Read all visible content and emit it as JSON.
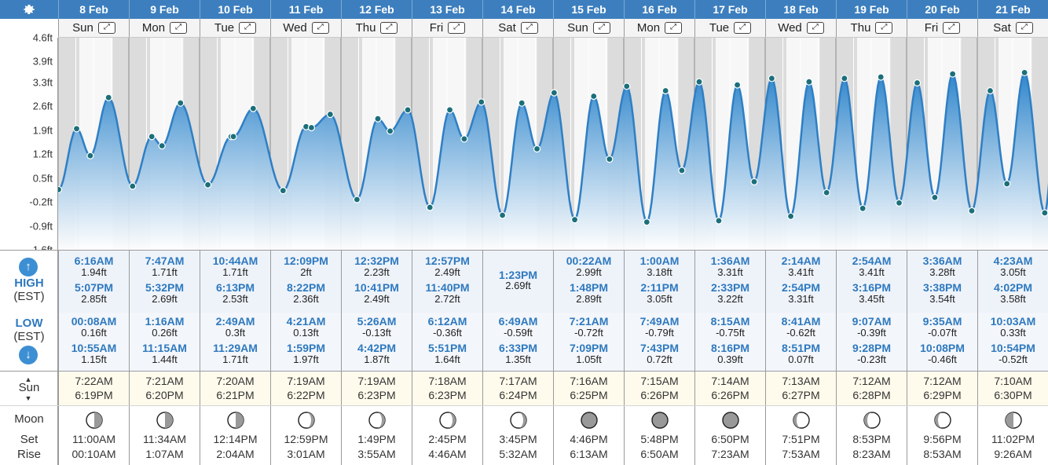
{
  "settings_icon": "gear-icon",
  "days": [
    {
      "date": "8 Feb",
      "day": "Sun",
      "high": [
        {
          "time": "6:16AM",
          "height": "1.94ft"
        },
        {
          "time": "5:07PM",
          "height": "2.85ft"
        }
      ],
      "low": [
        {
          "time": "00:08AM",
          "height": "0.16ft"
        },
        {
          "time": "10:55AM",
          "height": "1.15ft"
        }
      ],
      "sunrise": "7:22AM",
      "sunset": "6:19PM",
      "moonset": "11:00AM",
      "moonrise": "00:10AM",
      "moon_phase": "last-quarter"
    },
    {
      "date": "9 Feb",
      "day": "Mon",
      "high": [
        {
          "time": "7:47AM",
          "height": "1.71ft"
        },
        {
          "time": "5:32PM",
          "height": "2.69ft"
        }
      ],
      "low": [
        {
          "time": "1:16AM",
          "height": "0.26ft"
        },
        {
          "time": "11:15AM",
          "height": "1.44ft"
        }
      ],
      "sunrise": "7:21AM",
      "sunset": "6:20PM",
      "moonset": "11:34AM",
      "moonrise": "1:07AM",
      "moon_phase": "last-quarter"
    },
    {
      "date": "10 Feb",
      "day": "Tue",
      "high": [
        {
          "time": "10:44AM",
          "height": "1.71ft"
        },
        {
          "time": "6:13PM",
          "height": "2.53ft"
        }
      ],
      "low": [
        {
          "time": "2:49AM",
          "height": "0.3ft"
        },
        {
          "time": "11:29AM",
          "height": "1.71ft"
        }
      ],
      "sunrise": "7:20AM",
      "sunset": "6:21PM",
      "moonset": "12:14PM",
      "moonrise": "2:04AM",
      "moon_phase": "last-quarter"
    },
    {
      "date": "11 Feb",
      "day": "Wed",
      "high": [
        {
          "time": "12:09PM",
          "height": "2ft"
        },
        {
          "time": "8:22PM",
          "height": "2.36ft"
        }
      ],
      "low": [
        {
          "time": "4:21AM",
          "height": "0.13ft"
        },
        {
          "time": "1:59PM",
          "height": "1.97ft"
        }
      ],
      "sunrise": "7:19AM",
      "sunset": "6:22PM",
      "moonset": "12:59PM",
      "moonrise": "3:01AM",
      "moon_phase": "waning-crescent"
    },
    {
      "date": "12 Feb",
      "day": "Thu",
      "high": [
        {
          "time": "12:32PM",
          "height": "2.23ft"
        },
        {
          "time": "10:41PM",
          "height": "2.49ft"
        }
      ],
      "low": [
        {
          "time": "5:26AM",
          "height": "-0.13ft"
        },
        {
          "time": "4:42PM",
          "height": "1.87ft"
        }
      ],
      "sunrise": "7:19AM",
      "sunset": "6:23PM",
      "moonset": "1:49PM",
      "moonrise": "3:55AM",
      "moon_phase": "waning-crescent"
    },
    {
      "date": "13 Feb",
      "day": "Fri",
      "high": [
        {
          "time": "12:57PM",
          "height": "2.49ft"
        },
        {
          "time": "11:40PM",
          "height": "2.72ft"
        }
      ],
      "low": [
        {
          "time": "6:12AM",
          "height": "-0.36ft"
        },
        {
          "time": "5:51PM",
          "height": "1.64ft"
        }
      ],
      "sunrise": "7:18AM",
      "sunset": "6:23PM",
      "moonset": "2:45PM",
      "moonrise": "4:46AM",
      "moon_phase": "waning-crescent"
    },
    {
      "date": "14 Feb",
      "day": "Sat",
      "high": [
        {
          "time": "1:23PM",
          "height": "2.69ft"
        }
      ],
      "low": [
        {
          "time": "6:49AM",
          "height": "-0.59ft"
        },
        {
          "time": "6:33PM",
          "height": "1.35ft"
        }
      ],
      "sunrise": "7:17AM",
      "sunset": "6:24PM",
      "moonset": "3:45PM",
      "moonrise": "5:32AM",
      "moon_phase": "waning-crescent"
    },
    {
      "date": "15 Feb",
      "day": "Sun",
      "high": [
        {
          "time": "00:22AM",
          "height": "2.99ft"
        },
        {
          "time": "1:48PM",
          "height": "2.89ft"
        }
      ],
      "low": [
        {
          "time": "7:21AM",
          "height": "-0.72ft"
        },
        {
          "time": "7:09PM",
          "height": "1.05ft"
        }
      ],
      "sunrise": "7:16AM",
      "sunset": "6:25PM",
      "moonset": "4:46PM",
      "moonrise": "6:13AM",
      "moon_phase": "new"
    },
    {
      "date": "16 Feb",
      "day": "Mon",
      "high": [
        {
          "time": "1:00AM",
          "height": "3.18ft"
        },
        {
          "time": "2:11PM",
          "height": "3.05ft"
        }
      ],
      "low": [
        {
          "time": "7:49AM",
          "height": "-0.79ft"
        },
        {
          "time": "7:43PM",
          "height": "0.72ft"
        }
      ],
      "sunrise": "7:15AM",
      "sunset": "6:26PM",
      "moonset": "5:48PM",
      "moonrise": "6:50AM",
      "moon_phase": "new"
    },
    {
      "date": "17 Feb",
      "day": "Tue",
      "high": [
        {
          "time": "1:36AM",
          "height": "3.31ft"
        },
        {
          "time": "2:33PM",
          "height": "3.22ft"
        }
      ],
      "low": [
        {
          "time": "8:15AM",
          "height": "-0.75ft"
        },
        {
          "time": "8:16PM",
          "height": "0.39ft"
        }
      ],
      "sunrise": "7:14AM",
      "sunset": "6:26PM",
      "moonset": "6:50PM",
      "moonrise": "7:23AM",
      "moon_phase": "new"
    },
    {
      "date": "18 Feb",
      "day": "Wed",
      "high": [
        {
          "time": "2:14AM",
          "height": "3.41ft"
        },
        {
          "time": "2:54PM",
          "height": "3.31ft"
        }
      ],
      "low": [
        {
          "time": "8:41AM",
          "height": "-0.62ft"
        },
        {
          "time": "8:51PM",
          "height": "0.07ft"
        }
      ],
      "sunrise": "7:13AM",
      "sunset": "6:27PM",
      "moonset": "7:51PM",
      "moonrise": "7:53AM",
      "moon_phase": "waxing-crescent"
    },
    {
      "date": "19 Feb",
      "day": "Thu",
      "high": [
        {
          "time": "2:54AM",
          "height": "3.41ft"
        },
        {
          "time": "3:16PM",
          "height": "3.45ft"
        }
      ],
      "low": [
        {
          "time": "9:07AM",
          "height": "-0.39ft"
        },
        {
          "time": "9:28PM",
          "height": "-0.23ft"
        }
      ],
      "sunrise": "7:12AM",
      "sunset": "6:28PM",
      "moonset": "8:53PM",
      "moonrise": "8:23AM",
      "moon_phase": "waxing-crescent"
    },
    {
      "date": "20 Feb",
      "day": "Fri",
      "high": [
        {
          "time": "3:36AM",
          "height": "3.28ft"
        },
        {
          "time": "3:38PM",
          "height": "3.54ft"
        }
      ],
      "low": [
        {
          "time": "9:35AM",
          "height": "-0.07ft"
        },
        {
          "time": "10:08PM",
          "height": "-0.46ft"
        }
      ],
      "sunrise": "7:12AM",
      "sunset": "6:29PM",
      "moonset": "9:56PM",
      "moonrise": "8:53AM",
      "moon_phase": "waxing-crescent"
    },
    {
      "date": "21 Feb",
      "day": "Sat",
      "high": [
        {
          "time": "4:23AM",
          "height": "3.05ft"
        },
        {
          "time": "4:02PM",
          "height": "3.58ft"
        }
      ],
      "low": [
        {
          "time": "10:03AM",
          "height": "0.33ft"
        },
        {
          "time": "10:54PM",
          "height": "-0.52ft"
        }
      ],
      "sunrise": "7:10AM",
      "sunset": "6:30PM",
      "moonset": "11:02PM",
      "moonrise": "9:26AM",
      "moon_phase": "first-quarter"
    }
  ],
  "labels": {
    "high": "HIGH",
    "high_tz": "(EST)",
    "low": "LOW",
    "low_tz": "(EST)",
    "sun": "Sun",
    "moon": "Moon",
    "set": "Set",
    "rise": "Rise",
    "expand_icon": "expand-icon",
    "high_icon": "up-arrow-icon",
    "low_icon": "down-arrow-icon"
  },
  "chart_data": {
    "type": "area",
    "y_unit": "ft",
    "yticks": [
      "-1.6ft",
      "-0.9ft",
      "-0.2ft",
      "0.5ft",
      "1.2ft",
      "1.9ft",
      "2.6ft",
      "3.3ft",
      "3.9ft",
      "4.6ft"
    ],
    "ylim": [
      -1.6,
      4.6
    ],
    "xlim_start": "8 Feb",
    "xlim_end": "22 Feb",
    "series": [
      {
        "points": [
          [
            "8 Feb 00:08",
            0.16
          ],
          [
            "8 Feb 06:16",
            1.94
          ],
          [
            "8 Feb 10:55",
            1.15
          ],
          [
            "8 Feb 17:07",
            2.85
          ],
          [
            "9 Feb 01:16",
            0.26
          ],
          [
            "9 Feb 07:47",
            1.71
          ],
          [
            "9 Feb 11:15",
            1.44
          ],
          [
            "9 Feb 17:32",
            2.69
          ],
          [
            "10 Feb 02:49",
            0.3
          ],
          [
            "10 Feb 10:44",
            1.71
          ],
          [
            "10 Feb 11:29",
            1.71
          ],
          [
            "10 Feb 18:13",
            2.53
          ],
          [
            "11 Feb 04:21",
            0.13
          ],
          [
            "11 Feb 12:09",
            2.0
          ],
          [
            "11 Feb 13:59",
            1.97
          ],
          [
            "11 Feb 20:22",
            2.36
          ],
          [
            "12 Feb 05:26",
            -0.13
          ],
          [
            "12 Feb 12:32",
            2.23
          ],
          [
            "12 Feb 16:42",
            1.87
          ],
          [
            "12 Feb 22:41",
            2.49
          ],
          [
            "13 Feb 06:12",
            -0.36
          ],
          [
            "13 Feb 12:57",
            2.49
          ],
          [
            "13 Feb 17:51",
            1.64
          ],
          [
            "13 Feb 23:40",
            2.72
          ],
          [
            "14 Feb 06:49",
            -0.59
          ],
          [
            "14 Feb 13:23",
            2.69
          ],
          [
            "14 Feb 18:33",
            1.35
          ],
          [
            "15 Feb 00:22",
            2.99
          ],
          [
            "15 Feb 07:21",
            -0.72
          ],
          [
            "15 Feb 13:48",
            2.89
          ],
          [
            "15 Feb 19:09",
            1.05
          ],
          [
            "16 Feb 01:00",
            3.18
          ],
          [
            "16 Feb 07:49",
            -0.79
          ],
          [
            "16 Feb 14:11",
            3.05
          ],
          [
            "16 Feb 19:43",
            0.72
          ],
          [
            "17 Feb 01:36",
            3.31
          ],
          [
            "17 Feb 08:15",
            -0.75
          ],
          [
            "17 Feb 14:33",
            3.22
          ],
          [
            "17 Feb 20:16",
            0.39
          ],
          [
            "18 Feb 02:14",
            3.41
          ],
          [
            "18 Feb 08:41",
            -0.62
          ],
          [
            "18 Feb 14:54",
            3.31
          ],
          [
            "18 Feb 20:51",
            0.07
          ],
          [
            "19 Feb 02:54",
            3.41
          ],
          [
            "19 Feb 09:07",
            -0.39
          ],
          [
            "19 Feb 15:16",
            3.45
          ],
          [
            "19 Feb 21:28",
            -0.23
          ],
          [
            "20 Feb 03:36",
            3.28
          ],
          [
            "20 Feb 09:35",
            -0.07
          ],
          [
            "20 Feb 15:38",
            3.54
          ],
          [
            "20 Feb 22:08",
            -0.46
          ],
          [
            "21 Feb 04:23",
            3.05
          ],
          [
            "21 Feb 10:03",
            0.33
          ],
          [
            "21 Feb 16:02",
            3.58
          ],
          [
            "21 Feb 22:54",
            -0.52
          ]
        ]
      }
    ],
    "colors": {
      "line": "#2f7fc4",
      "fill_top": "#3b8fd2",
      "fill_bottom": "#ffffff",
      "point": "#1b6f7a",
      "night": "#dcdcdc",
      "day": "#f7f7f7"
    }
  }
}
